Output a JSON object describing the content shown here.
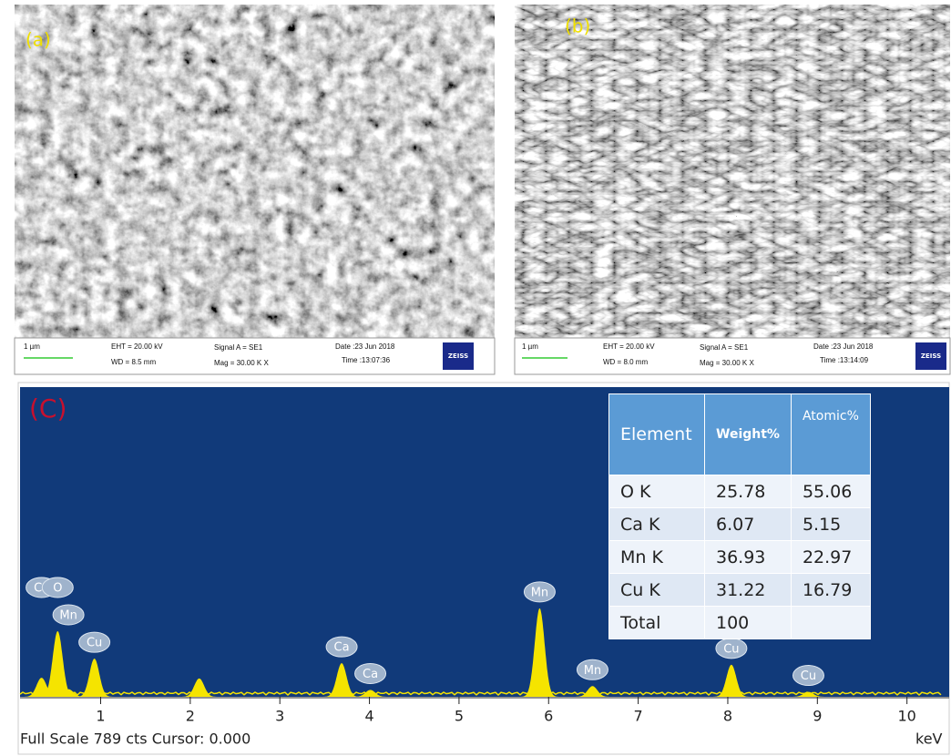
{
  "sem_a": {
    "label": "(a)",
    "scale": "1 µm",
    "eht": "EHT = 20.00 kV",
    "wd": "WD = 8.5 mm",
    "signal": "Signal A = SE1",
    "mag": "Mag =  30.00 K X",
    "date": "Date :23 Jun 2018",
    "time": "Time :13:07:36",
    "logo": "ZEISS"
  },
  "sem_b": {
    "label": "(b)",
    "scale": "1 µm",
    "eht": "EHT = 20.00 kV",
    "wd": "WD = 8.0 mm",
    "signal": "Signal A = SE1",
    "mag": "Mag =  30.00 K X",
    "date": "Date :23 Jun 2018",
    "time": "Time :13:14:09",
    "logo": "ZEISS"
  },
  "spectrum": {
    "label": "(C)",
    "x_label": "keV",
    "footer": "Full Scale 789 cts Cursor: 0.000",
    "xlim": [
      0.1,
      10.4
    ],
    "ylim": [
      0,
      800
    ],
    "xticks": [
      1,
      2,
      3,
      4,
      5,
      6,
      7,
      8,
      9,
      10
    ],
    "color": "#f5e400",
    "peaks": [
      {
        "label": "Ca",
        "energy": 0.34,
        "counts": 50
      },
      {
        "label": "O",
        "energy": 0.52,
        "counts": 172
      },
      {
        "label": "Mn",
        "energy": 0.64,
        "counts": 20
      },
      {
        "label": "Cu",
        "energy": 0.93,
        "counts": 100
      },
      {
        "label": null,
        "energy": 2.1,
        "counts": 48
      },
      {
        "label": "Ca",
        "energy": 3.69,
        "counts": 88
      },
      {
        "label": "Ca",
        "energy": 4.01,
        "counts": 18
      },
      {
        "label": "Mn",
        "energy": 5.9,
        "counts": 232
      },
      {
        "label": "Mn",
        "energy": 6.49,
        "counts": 28
      },
      {
        "label": "Cu",
        "energy": 8.04,
        "counts": 84
      },
      {
        "label": "Cu",
        "energy": 8.9,
        "counts": 13
      }
    ]
  },
  "table": {
    "header": [
      "Element",
      "Weight%",
      "Atomic%"
    ],
    "rows": [
      [
        "O K",
        25.78,
        55.06
      ],
      [
        "Ca K",
        6.07,
        5.15
      ],
      [
        "Mn K",
        36.93,
        22.97
      ],
      [
        "Cu K",
        31.22,
        16.79
      ],
      [
        "Total",
        100
      ]
    ]
  }
}
